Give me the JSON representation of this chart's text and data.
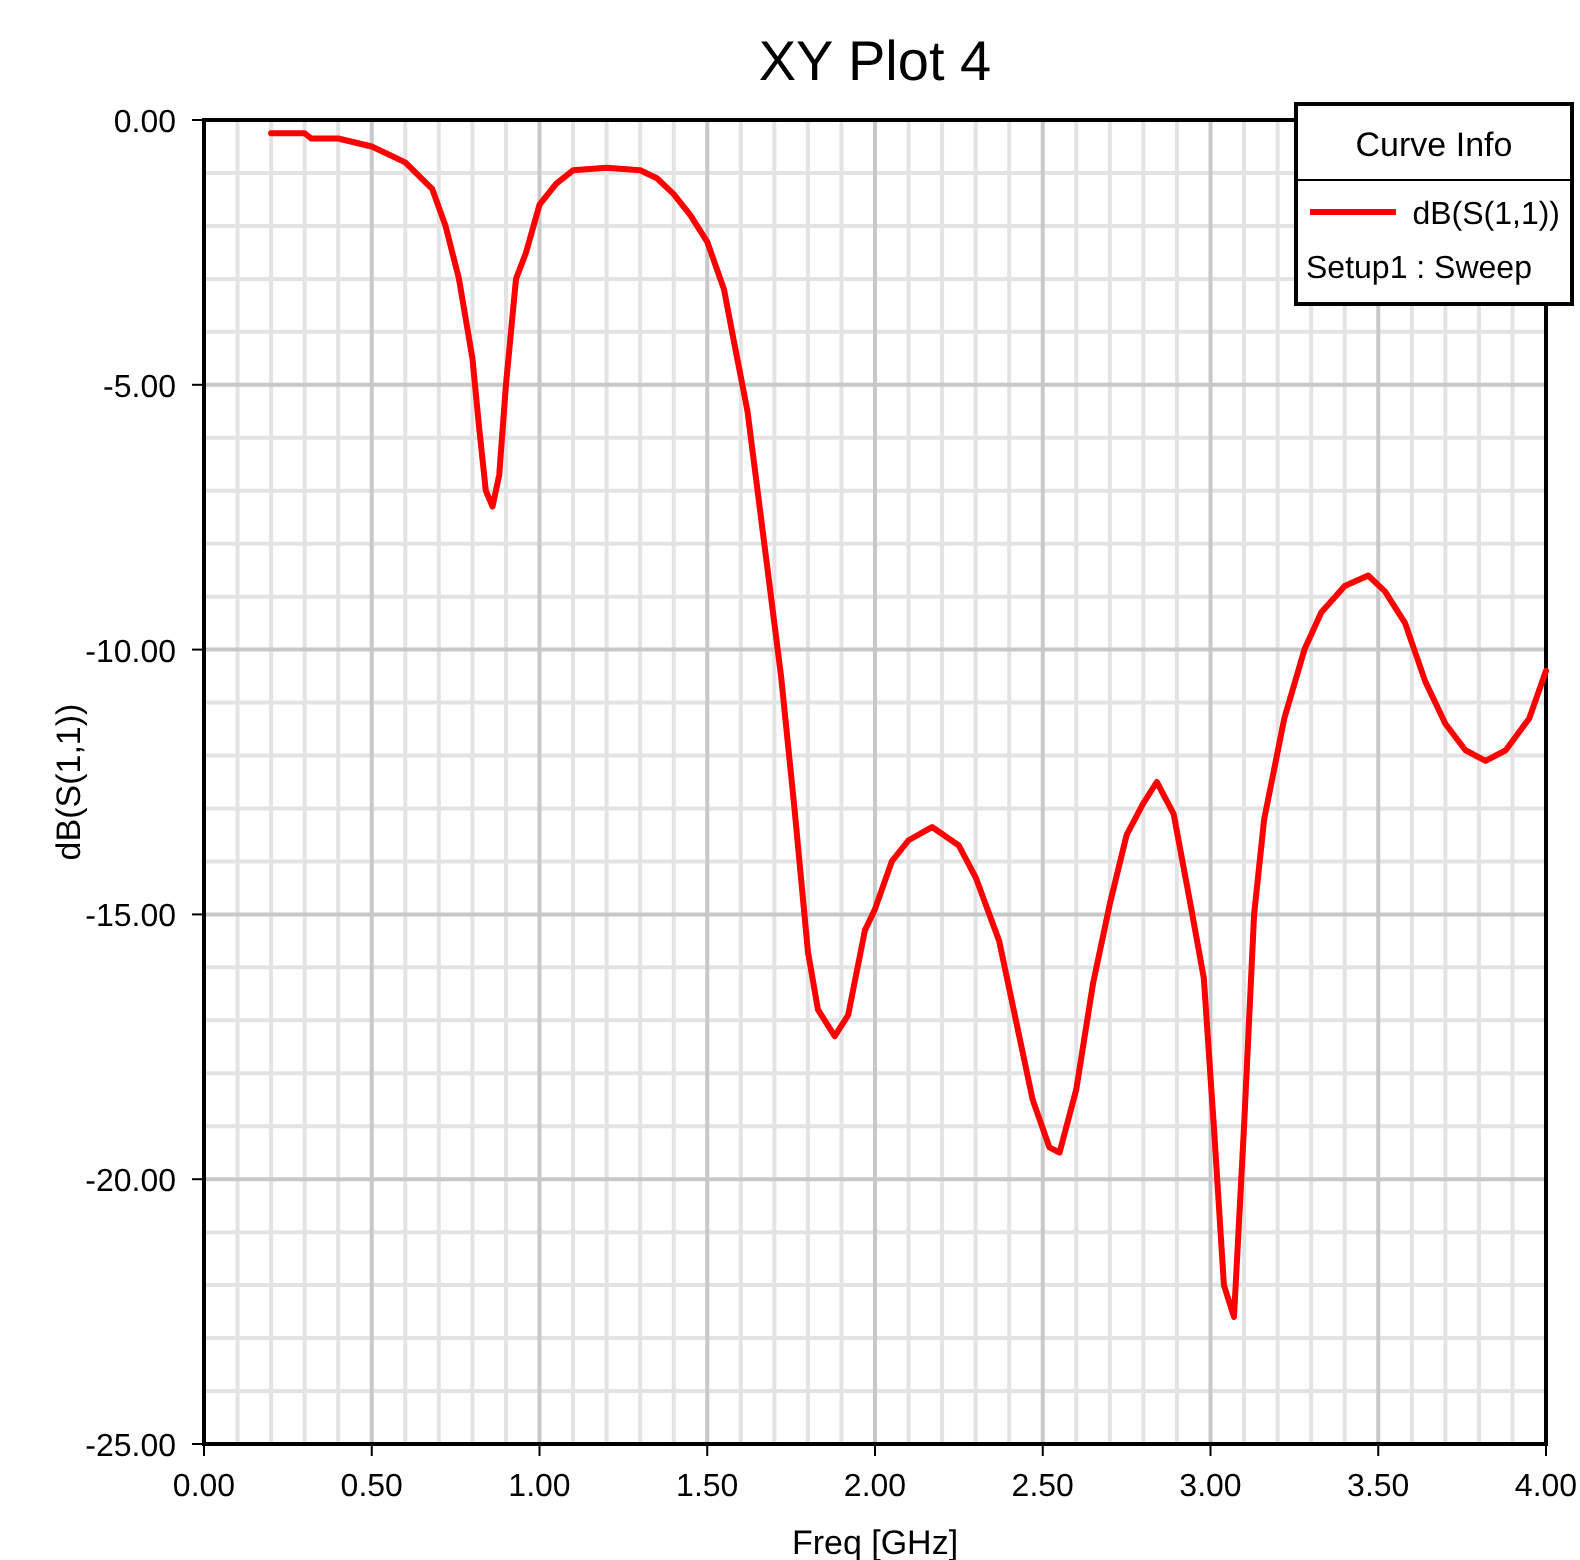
{
  "chart_data": {
    "type": "line",
    "title": "XY Plot 4",
    "xlabel": "Freq [GHz]",
    "ylabel": "dB(S(1,1))",
    "legend_title": "Curve Info",
    "annotations": [
      "Setup1 : Sweep"
    ],
    "x": [
      0.2,
      0.3,
      0.32,
      0.4,
      0.5,
      0.6,
      0.68,
      0.72,
      0.76,
      0.8,
      0.82,
      0.84,
      0.86,
      0.88,
      0.9,
      0.93,
      0.96,
      1.0,
      1.05,
      1.1,
      1.2,
      1.3,
      1.35,
      1.4,
      1.45,
      1.5,
      1.55,
      1.58,
      1.62,
      1.65,
      1.7,
      1.72,
      1.76,
      1.8,
      1.83,
      1.88,
      1.92,
      1.97,
      2.0,
      2.05,
      2.1,
      2.17,
      2.25,
      2.3,
      2.37,
      2.42,
      2.47,
      2.52,
      2.55,
      2.6,
      2.65,
      2.7,
      2.75,
      2.8,
      2.84,
      2.89,
      2.94,
      2.98,
      3.01,
      3.04,
      3.07,
      3.1,
      3.13,
      3.16,
      3.22,
      3.28,
      3.33,
      3.4,
      3.47,
      3.52,
      3.58,
      3.64,
      3.7,
      3.76,
      3.82,
      3.88,
      3.95,
      4.0
    ],
    "series": [
      {
        "name": "dB(S(1,1))",
        "color": "#ff0000",
        "values": [
          -0.25,
          -0.25,
          -0.35,
          -0.35,
          -0.5,
          -0.8,
          -1.3,
          -2.0,
          -3.0,
          -4.5,
          -5.8,
          -7.0,
          -7.3,
          -6.7,
          -5.0,
          -3.0,
          -2.5,
          -1.6,
          -1.2,
          -0.95,
          -0.9,
          -0.95,
          -1.1,
          -1.4,
          -1.8,
          -2.3,
          -3.2,
          -4.2,
          -5.5,
          -7.0,
          -9.5,
          -10.5,
          -13.0,
          -15.7,
          -16.8,
          -17.3,
          -16.9,
          -15.3,
          -14.9,
          -14.0,
          -13.6,
          -13.35,
          -13.7,
          -14.3,
          -15.5,
          -17.0,
          -18.5,
          -19.4,
          -19.5,
          -18.3,
          -16.3,
          -14.8,
          -13.5,
          -12.9,
          -12.5,
          -13.1,
          -14.8,
          -16.2,
          -19.0,
          -22.0,
          -22.6,
          -19.0,
          -15.0,
          -13.2,
          -11.3,
          -10.0,
          -9.3,
          -8.8,
          -8.6,
          -8.9,
          -9.5,
          -10.6,
          -11.4,
          -11.9,
          -12.1,
          -11.9,
          -11.3,
          -10.4
        ]
      }
    ],
    "xlim": [
      0,
      4
    ],
    "xticks": [
      {
        "value": 0,
        "label": "0.00"
      },
      {
        "value": 0.5,
        "label": "0.50"
      },
      {
        "value": 1,
        "label": "1.00"
      },
      {
        "value": 1.5,
        "label": "1.50"
      },
      {
        "value": 2,
        "label": "2.00"
      },
      {
        "value": 2.5,
        "label": "2.50"
      },
      {
        "value": 3,
        "label": "3.00"
      },
      {
        "value": 3.5,
        "label": "3.50"
      },
      {
        "value": 4,
        "label": "4.00"
      }
    ],
    "ylim": [
      -25,
      0
    ],
    "yticks": [
      {
        "value": -25,
        "label": "-25.00"
      },
      {
        "value": -20,
        "label": "-20.00"
      },
      {
        "value": -15,
        "label": "-15.00"
      },
      {
        "value": -10,
        "label": "-10.00"
      },
      {
        "value": -5,
        "label": "-5.00"
      },
      {
        "value": 0,
        "label": "0.00"
      }
    ],
    "grid": true,
    "legend": "top right",
    "line_style": "solid",
    "marker": "none"
  }
}
